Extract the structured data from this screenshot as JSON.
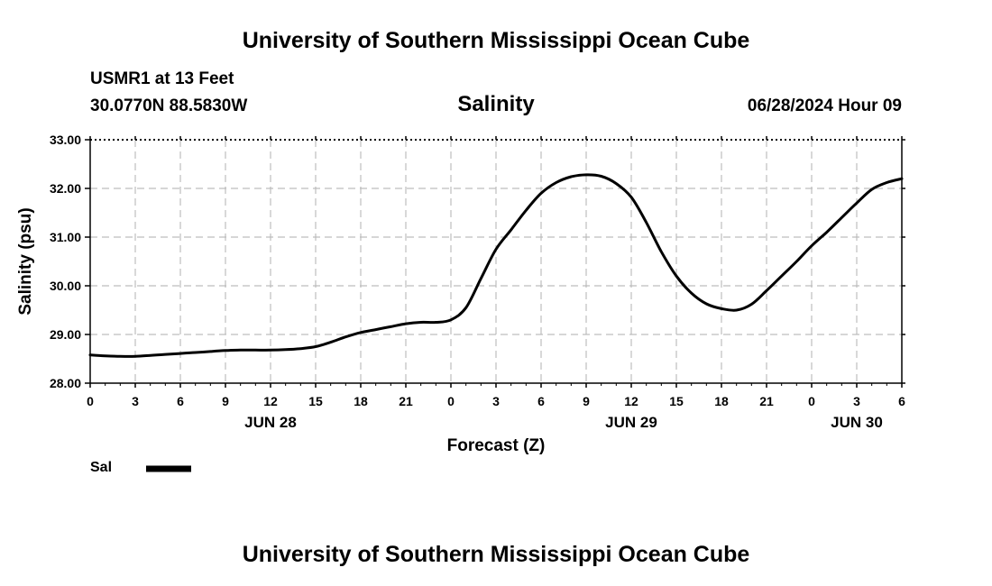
{
  "header": {
    "top_title": "University of Southern Mississippi Ocean Cube",
    "station": "USMR1 at 13 Feet",
    "coords": "30.0770N  88.5830W",
    "datetime": "06/28/2024 Hour 09"
  },
  "footer": {
    "bottom_title": "University of Southern Mississippi Ocean Cube"
  },
  "legend": {
    "label": "Sal"
  },
  "colors": {
    "line": "#000000",
    "grid": "#bdbdbd"
  },
  "chart_data": {
    "type": "line",
    "title": "Salinity",
    "xlabel": "Forecast (Z)",
    "ylabel": "Salinity (psu)",
    "ylim": [
      28,
      33
    ],
    "xlim": [
      0,
      54
    ],
    "grid": true,
    "legend_position": "bottom-left",
    "y_ticks": [
      "28.00",
      "29.00",
      "30.00",
      "31.00",
      "32.00",
      "33.00"
    ],
    "x_tick_labels": [
      "0",
      "3",
      "6",
      "9",
      "12",
      "15",
      "18",
      "21",
      "0",
      "3",
      "6",
      "9",
      "12",
      "15",
      "18",
      "21",
      "0",
      "3",
      "6"
    ],
    "date_labels": [
      {
        "label": "JUN 28",
        "hour": 12
      },
      {
        "label": "JUN 29",
        "hour": 36
      },
      {
        "label": "JUN 30",
        "hour": 51
      }
    ],
    "series": [
      {
        "name": "Sal",
        "x": [
          0,
          1,
          2,
          3,
          4,
          5,
          6,
          7,
          8,
          9,
          10,
          11,
          12,
          13,
          14,
          15,
          16,
          17,
          18,
          19,
          20,
          21,
          22,
          23,
          24,
          25,
          26,
          27,
          28,
          29,
          30,
          31,
          32,
          33,
          34,
          35,
          36,
          37,
          38,
          39,
          40,
          41,
          42,
          43,
          44,
          45,
          46,
          47,
          48,
          49,
          50,
          51,
          52,
          53,
          54
        ],
        "values": [
          28.58,
          28.56,
          28.55,
          28.55,
          28.57,
          28.59,
          28.61,
          28.63,
          28.65,
          28.67,
          28.68,
          28.68,
          28.68,
          28.69,
          28.71,
          28.75,
          28.84,
          28.95,
          29.04,
          29.1,
          29.16,
          29.22,
          29.25,
          29.25,
          29.3,
          29.55,
          30.15,
          30.75,
          31.15,
          31.55,
          31.9,
          32.12,
          32.24,
          32.28,
          32.25,
          32.1,
          31.82,
          31.3,
          30.7,
          30.2,
          29.85,
          29.63,
          29.53,
          29.5,
          29.62,
          29.9,
          30.2,
          30.5,
          30.82,
          31.1,
          31.4,
          31.7,
          31.98,
          32.12,
          32.2
        ]
      }
    ]
  }
}
